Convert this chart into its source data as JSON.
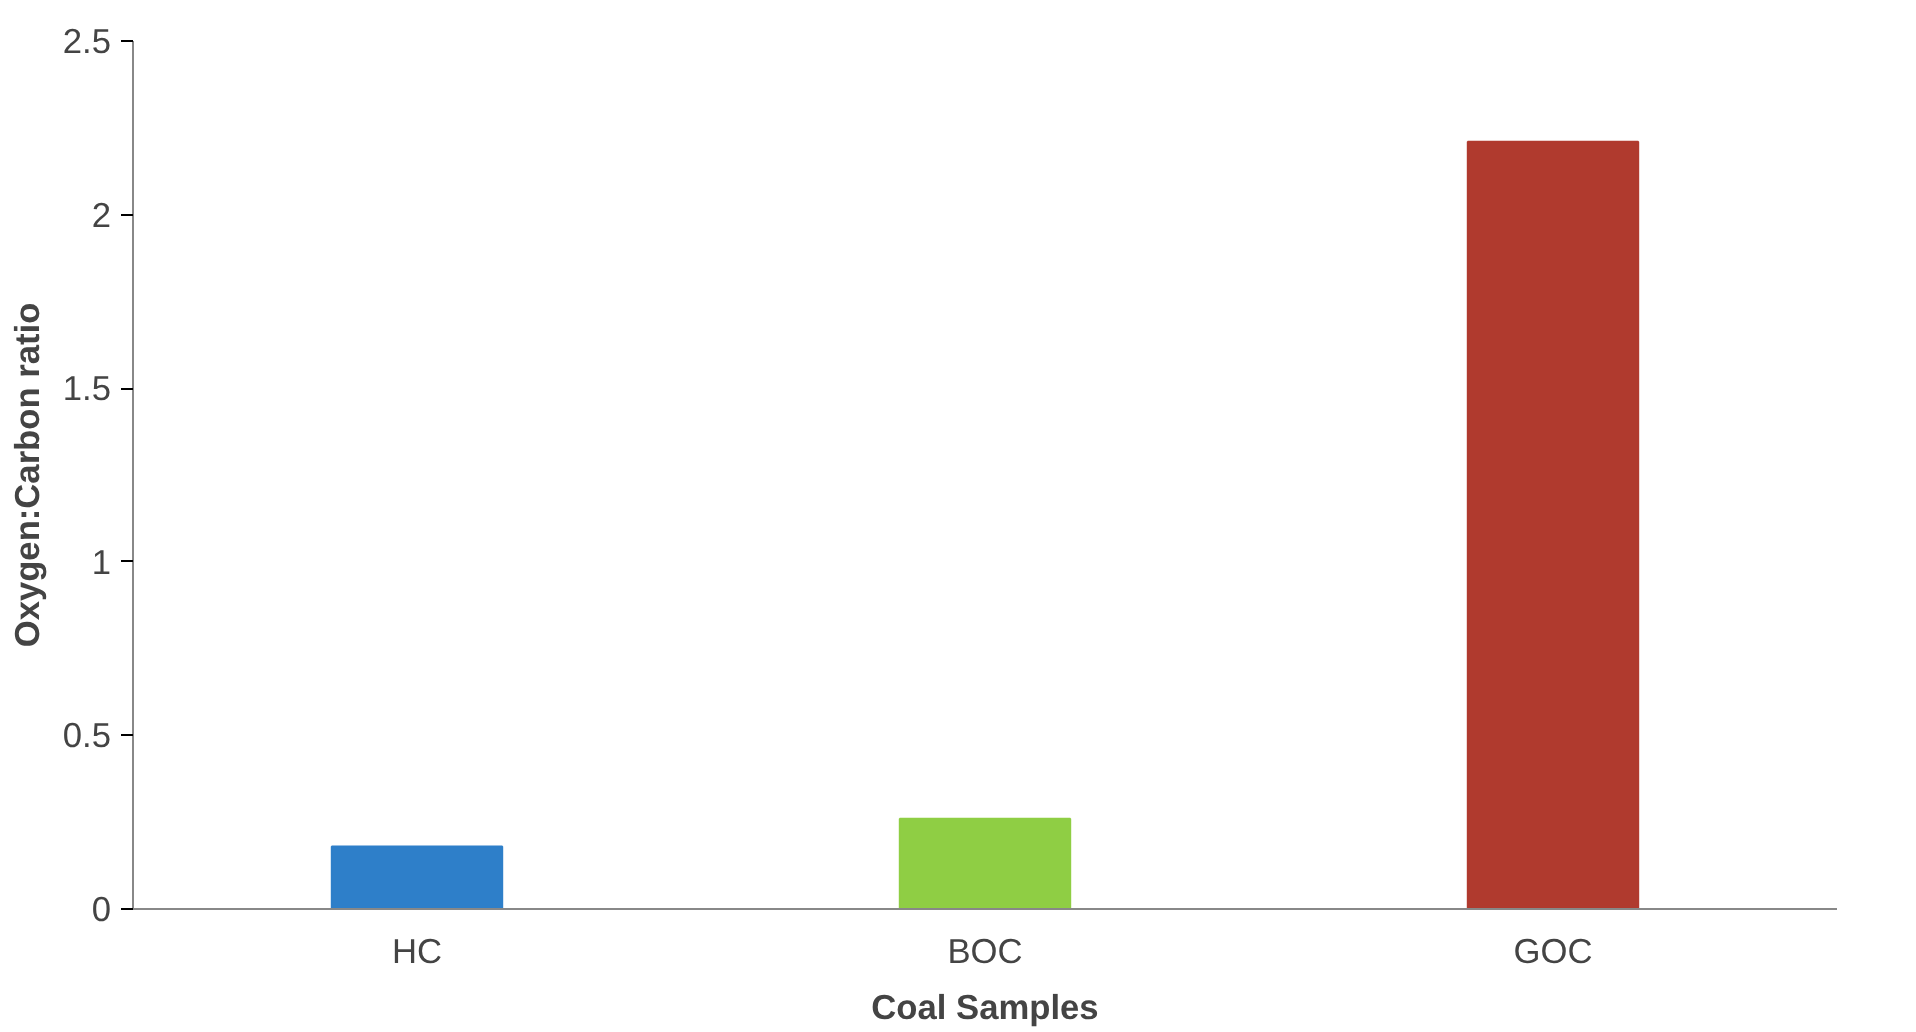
{
  "chart_data": {
    "type": "bar",
    "xlabel": "Coal Samples",
    "ylabel": "Oxygen:Carbon ratio",
    "categories": [
      "HC",
      "BOC",
      "GOC"
    ],
    "values": [
      0.18,
      0.26,
      2.21
    ],
    "colors": [
      "#2e7fc9",
      "#8fce44",
      "#b03a2e"
    ],
    "ylim": [
      0,
      2.5
    ],
    "yticks": [
      0,
      0.5,
      1,
      1.5,
      2,
      2.5
    ],
    "grid": false
  }
}
